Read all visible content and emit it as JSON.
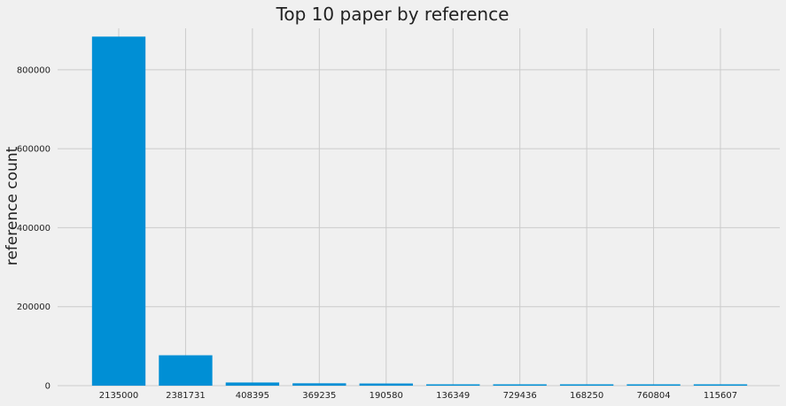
{
  "chart_data": {
    "type": "bar",
    "title": "Top 10 paper by reference",
    "xlabel": "",
    "ylabel": "reference count",
    "categories": [
      "2135000",
      "2381731",
      "408395",
      "369235",
      "190580",
      "136349",
      "729436",
      "168250",
      "760804",
      "115607"
    ],
    "values": [
      884000,
      77000,
      8000,
      6000,
      5500,
      3000,
      2800,
      2500,
      2300,
      2000
    ],
    "ylim": [
      0,
      905000
    ],
    "yticks": [
      0,
      200000,
      400000,
      600000,
      800000
    ],
    "ytick_labels": [
      "0",
      "200000",
      "400000",
      "600000",
      "800000"
    ],
    "grid": true,
    "legend": "none",
    "colors": {
      "bar": "#008fd5",
      "background": "#f0f0f0",
      "grid": "#cbcbcb",
      "text": "#222222"
    }
  }
}
